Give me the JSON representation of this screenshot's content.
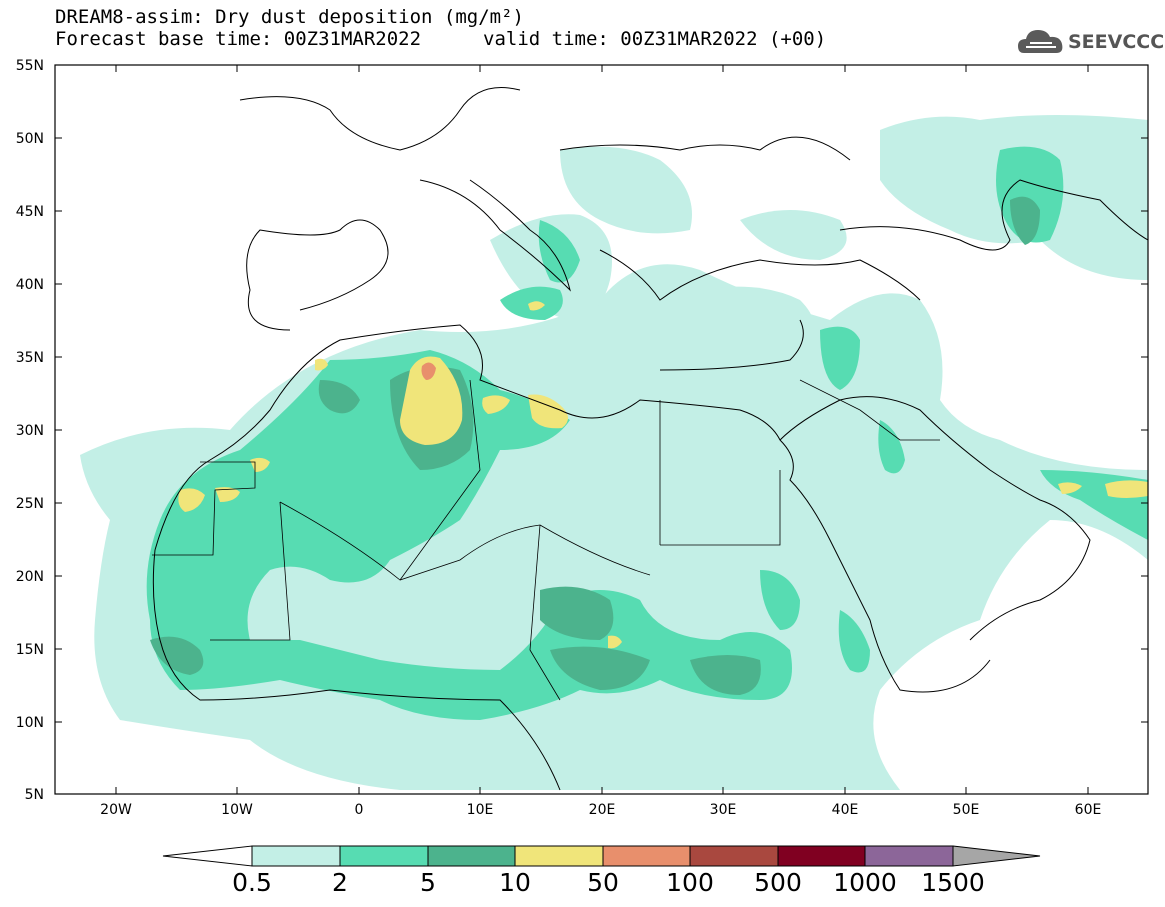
{
  "title": {
    "line1": "DREAM8-assim: Dry dust deposition (mg/m²)",
    "line2": "Forecast base time: 00Z31MAR2022",
    "valid": "valid time: 00Z31MAR2022 (+00)"
  },
  "logo": {
    "text": "SEEVCCC",
    "icon": "cloud-logo-icon"
  },
  "map": {
    "lat_labels": [
      "55N",
      "50N",
      "45N",
      "40N",
      "35N",
      "30N",
      "25N",
      "20N",
      "15N",
      "10N",
      "5N"
    ],
    "lon_labels": [
      "20W",
      "10W",
      "0",
      "10E",
      "20E",
      "30E",
      "40E",
      "50E",
      "60E"
    ]
  },
  "colorbar": {
    "labels": [
      "0.5",
      "2",
      "5",
      "10",
      "50",
      "100",
      "500",
      "1000",
      "1500"
    ],
    "colors": [
      "#c3efe6",
      "#57dcb2",
      "#4cb38d",
      "#f0e57a",
      "#e88f6c",
      "#a9483f",
      "#800021",
      "#8c6699",
      "#a6a6a6"
    ]
  }
}
